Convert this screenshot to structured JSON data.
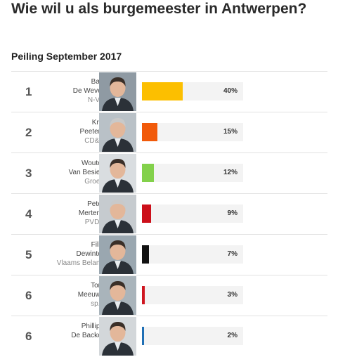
{
  "title": "Wie wil u als burgemeester in Antwerpen?",
  "subtitle": "Peiling September 2017",
  "chart_data": {
    "type": "bar",
    "title": "Wie wil u als burgemeester in Antwerpen?",
    "subtitle": "Peiling September 2017",
    "unit": "%",
    "xlim": [
      0,
      100
    ],
    "rows": [
      {
        "rank": "1",
        "first": "Bart",
        "last": "De Wever",
        "party": "N-VA",
        "value": 40,
        "label": "40%",
        "color": "#fcbf00"
      },
      {
        "rank": "2",
        "first": "Kris",
        "last": "Peeters",
        "party": "CD&V",
        "value": 15,
        "label": "15%",
        "color": "#f15a0a"
      },
      {
        "rank": "3",
        "first": "Wouter",
        "last": "Van Besien",
        "party": "Groen",
        "value": 12,
        "label": "12%",
        "color": "#83d14b"
      },
      {
        "rank": "4",
        "first": "Peter",
        "last": "Mertens",
        "party": "PVDA",
        "value": 9,
        "label": "9%",
        "color": "#cc0f1a"
      },
      {
        "rank": "5",
        "first": "Filip",
        "last": "Dewinter",
        "party": "Vlaams Belang",
        "value": 7,
        "label": "7%",
        "color": "#111111"
      },
      {
        "rank": "6",
        "first": "Tom",
        "last": "Meeuws",
        "party": "sp.a",
        "value": 3,
        "label": "3%",
        "color": "#cf1620"
      },
      {
        "rank": "6",
        "first": "Phillipe",
        "last": "De Backer",
        "party": "",
        "value": 2,
        "label": "2%",
        "color": "#1f6fb5"
      }
    ]
  }
}
